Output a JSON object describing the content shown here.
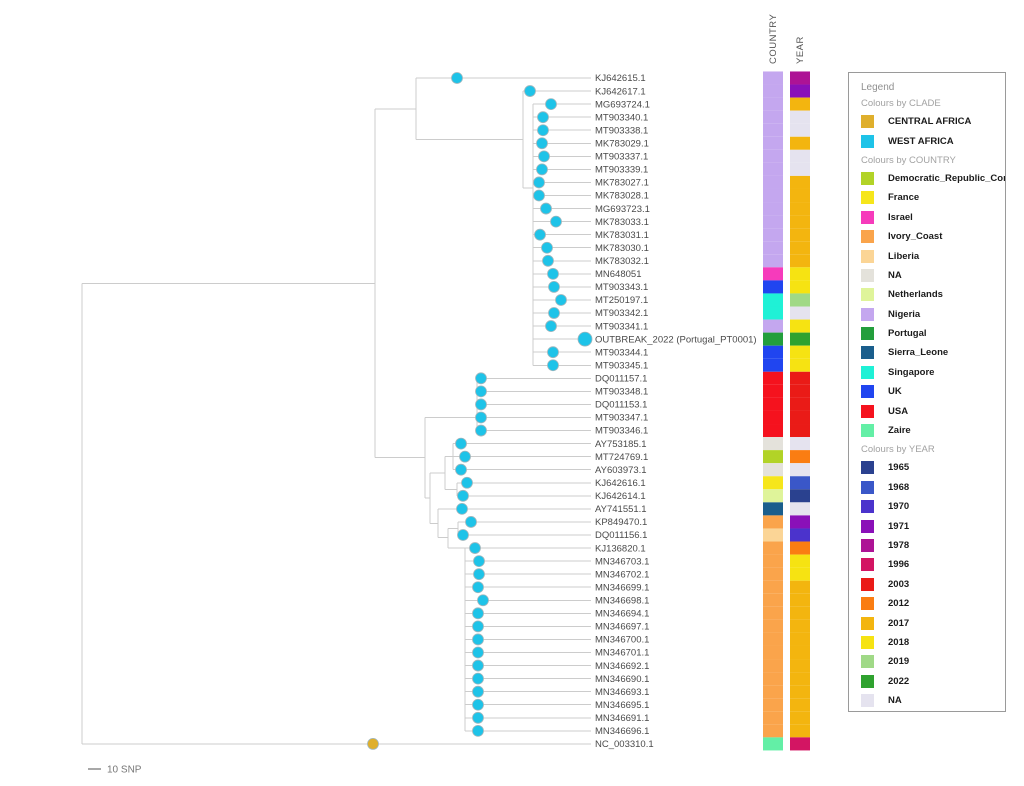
{
  "figure": {
    "scale_bar_label": "10 SNP",
    "column_headers": {
      "country": "COUNTRY",
      "year": "YEAR"
    }
  },
  "legend": {
    "title": "Legend",
    "sections": [
      {
        "title": "Colours by CLADE",
        "entries": [
          {
            "label": "CENTRAL AFRICA",
            "color": "#DFAF2C"
          },
          {
            "label": "WEST AFRICA",
            "color": "#1EC3E8"
          }
        ]
      },
      {
        "title": "Colours by COUNTRY",
        "entries": [
          {
            "label": "Democratic_Republic_Congo",
            "color": "#B2D327"
          },
          {
            "label": "France",
            "color": "#F6E61B"
          },
          {
            "label": "Israel",
            "color": "#F63BBB"
          },
          {
            "label": "Ivory_Coast",
            "color": "#FAA44B"
          },
          {
            "label": "Liberia",
            "color": "#FBD596"
          },
          {
            "label": "NA",
            "color": "#E4E2DB"
          },
          {
            "label": "Netherlands",
            "color": "#DFF49A"
          },
          {
            "label": "Nigeria",
            "color": "#C4A7EF"
          },
          {
            "label": "Portugal",
            "color": "#239E3C"
          },
          {
            "label": "Sierra_Leone",
            "color": "#1A5E8C"
          },
          {
            "label": "Singapore",
            "color": "#1FF1D6"
          },
          {
            "label": "UK",
            "color": "#2045F0"
          },
          {
            "label": "USA",
            "color": "#F5121E"
          },
          {
            "label": "Zaire",
            "color": "#63EFA6"
          }
        ]
      },
      {
        "title": "Colours by YEAR",
        "entries": [
          {
            "label": "1965",
            "color": "#2A418F"
          },
          {
            "label": "1968",
            "color": "#3A57C8"
          },
          {
            "label": "1970",
            "color": "#4B33CC"
          },
          {
            "label": "1971",
            "color": "#8A10B8"
          },
          {
            "label": "1978",
            "color": "#AD1395"
          },
          {
            "label": "1996",
            "color": "#D31563"
          },
          {
            "label": "2003",
            "color": "#EA1B17"
          },
          {
            "label": "2012",
            "color": "#FA7D12"
          },
          {
            "label": "2017",
            "color": "#F3B50F"
          },
          {
            "label": "2018",
            "color": "#F6E312"
          },
          {
            "label": "2019",
            "color": "#A0D987"
          },
          {
            "label": "2022",
            "color": "#2FA22F"
          },
          {
            "label": "NA",
            "color": "#E5E3EF"
          }
        ]
      }
    ]
  },
  "tree": {
    "tips": [
      {
        "label": "KJ642615.1",
        "clade": "WEST AFRICA",
        "country": "Nigeria",
        "year": "1978"
      },
      {
        "label": "KJ642617.1",
        "clade": "WEST AFRICA",
        "country": "Nigeria",
        "year": "1971"
      },
      {
        "label": "MG693724.1",
        "clade": "WEST AFRICA",
        "country": "Nigeria",
        "year": "2017"
      },
      {
        "label": "MT903340.1",
        "clade": "WEST AFRICA",
        "country": "Nigeria",
        "year": "NA"
      },
      {
        "label": "MT903338.1",
        "clade": "WEST AFRICA",
        "country": "Nigeria",
        "year": "NA"
      },
      {
        "label": "MK783029.1",
        "clade": "WEST AFRICA",
        "country": "Nigeria",
        "year": "2017"
      },
      {
        "label": "MT903337.1",
        "clade": "WEST AFRICA",
        "country": "Nigeria",
        "year": "NA"
      },
      {
        "label": "MT903339.1",
        "clade": "WEST AFRICA",
        "country": "Nigeria",
        "year": "NA"
      },
      {
        "label": "MK783027.1",
        "clade": "WEST AFRICA",
        "country": "Nigeria",
        "year": "2017"
      },
      {
        "label": "MK783028.1",
        "clade": "WEST AFRICA",
        "country": "Nigeria",
        "year": "2017"
      },
      {
        "label": "MG693723.1",
        "clade": "WEST AFRICA",
        "country": "Nigeria",
        "year": "2017"
      },
      {
        "label": "MK783033.1",
        "clade": "WEST AFRICA",
        "country": "Nigeria",
        "year": "2017"
      },
      {
        "label": "MK783031.1",
        "clade": "WEST AFRICA",
        "country": "Nigeria",
        "year": "2017"
      },
      {
        "label": "MK783030.1",
        "clade": "WEST AFRICA",
        "country": "Nigeria",
        "year": "2017"
      },
      {
        "label": "MK783032.1",
        "clade": "WEST AFRICA",
        "country": "Nigeria",
        "year": "2017"
      },
      {
        "label": "MN648051",
        "clade": "WEST AFRICA",
        "country": "Israel",
        "year": "2018"
      },
      {
        "label": "MT903343.1",
        "clade": "WEST AFRICA",
        "country": "UK",
        "year": "2018"
      },
      {
        "label": "MT250197.1",
        "clade": "WEST AFRICA",
        "country": "Singapore",
        "year": "2019"
      },
      {
        "label": "MT903342.1",
        "clade": "WEST AFRICA",
        "country": "Singapore",
        "year": "NA"
      },
      {
        "label": "MT903341.1",
        "clade": "WEST AFRICA",
        "country": "Nigeria",
        "year": "2018"
      },
      {
        "label": "OUTBREAK_2022 (Portugal_PT0001)",
        "clade": "WEST AFRICA",
        "country": "Portugal",
        "year": "2022"
      },
      {
        "label": "MT903344.1",
        "clade": "WEST AFRICA",
        "country": "UK",
        "year": "2018"
      },
      {
        "label": "MT903345.1",
        "clade": "WEST AFRICA",
        "country": "UK",
        "year": "2018"
      },
      {
        "label": "DQ011157.1",
        "clade": "WEST AFRICA",
        "country": "USA",
        "year": "2003"
      },
      {
        "label": "MT903348.1",
        "clade": "WEST AFRICA",
        "country": "USA",
        "year": "2003"
      },
      {
        "label": "DQ011153.1",
        "clade": "WEST AFRICA",
        "country": "USA",
        "year": "2003"
      },
      {
        "label": "MT903347.1",
        "clade": "WEST AFRICA",
        "country": "USA",
        "year": "2003"
      },
      {
        "label": "MT903346.1",
        "clade": "WEST AFRICA",
        "country": "USA",
        "year": "2003"
      },
      {
        "label": "AY753185.1",
        "clade": "WEST AFRICA",
        "country": "NA",
        "year": "NA"
      },
      {
        "label": "MT724769.1",
        "clade": "WEST AFRICA",
        "country": "Democratic_Republic_Congo",
        "year": "2012"
      },
      {
        "label": "AY603973.1",
        "clade": "WEST AFRICA",
        "country": "NA",
        "year": "NA"
      },
      {
        "label": "KJ642616.1",
        "clade": "WEST AFRICA",
        "country": "France",
        "year": "1968"
      },
      {
        "label": "KJ642614.1",
        "clade": "WEST AFRICA",
        "country": "Netherlands",
        "year": "1965"
      },
      {
        "label": "AY741551.1",
        "clade": "WEST AFRICA",
        "country": "Sierra_Leone",
        "year": "NA"
      },
      {
        "label": "KP849470.1",
        "clade": "WEST AFRICA",
        "country": "Ivory_Coast",
        "year": "1971"
      },
      {
        "label": "DQ011156.1",
        "clade": "WEST AFRICA",
        "country": "Liberia",
        "year": "1970"
      },
      {
        "label": "KJ136820.1",
        "clade": "WEST AFRICA",
        "country": "Ivory_Coast",
        "year": "2012"
      },
      {
        "label": "MN346703.1",
        "clade": "WEST AFRICA",
        "country": "Ivory_Coast",
        "year": "2018"
      },
      {
        "label": "MN346702.1",
        "clade": "WEST AFRICA",
        "country": "Ivory_Coast",
        "year": "2018"
      },
      {
        "label": "MN346699.1",
        "clade": "WEST AFRICA",
        "country": "Ivory_Coast",
        "year": "2017"
      },
      {
        "label": "MN346698.1",
        "clade": "WEST AFRICA",
        "country": "Ivory_Coast",
        "year": "2017"
      },
      {
        "label": "MN346694.1",
        "clade": "WEST AFRICA",
        "country": "Ivory_Coast",
        "year": "2017"
      },
      {
        "label": "MN346697.1",
        "clade": "WEST AFRICA",
        "country": "Ivory_Coast",
        "year": "2017"
      },
      {
        "label": "MN346700.1",
        "clade": "WEST AFRICA",
        "country": "Ivory_Coast",
        "year": "2017"
      },
      {
        "label": "MN346701.1",
        "clade": "WEST AFRICA",
        "country": "Ivory_Coast",
        "year": "2017"
      },
      {
        "label": "MN346692.1",
        "clade": "WEST AFRICA",
        "country": "Ivory_Coast",
        "year": "2017"
      },
      {
        "label": "MN346690.1",
        "clade": "WEST AFRICA",
        "country": "Ivory_Coast",
        "year": "2017"
      },
      {
        "label": "MN346693.1",
        "clade": "WEST AFRICA",
        "country": "Ivory_Coast",
        "year": "2017"
      },
      {
        "label": "MN346695.1",
        "clade": "WEST AFRICA",
        "country": "Ivory_Coast",
        "year": "2017"
      },
      {
        "label": "MN346691.1",
        "clade": "WEST AFRICA",
        "country": "Ivory_Coast",
        "year": "2017"
      },
      {
        "label": "MN346696.1",
        "clade": "WEST AFRICA",
        "country": "Ivory_Coast",
        "year": "2017"
      },
      {
        "label": "NC_003310.1",
        "clade": "CENTRAL AFRICA",
        "country": "Zaire",
        "year": "1996"
      }
    ]
  }
}
